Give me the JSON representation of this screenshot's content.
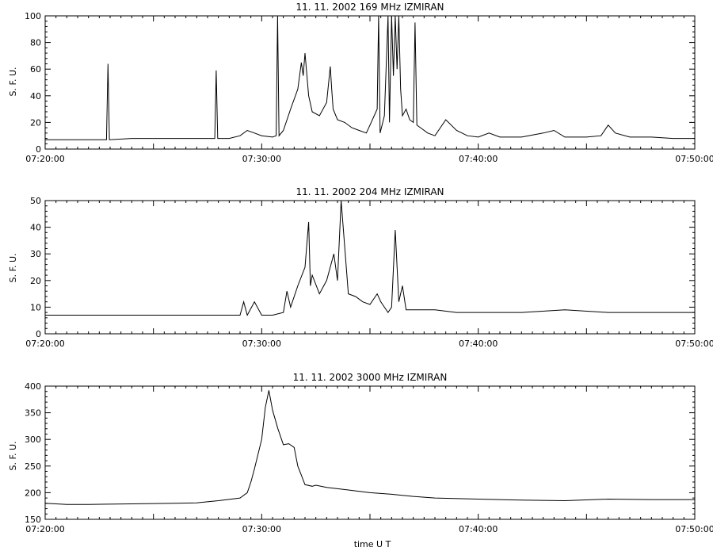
{
  "chart_data": [
    {
      "type": "line",
      "title": "11. 11. 2002 169 MHz IZMIRAN",
      "ylabel": "S. F. U.",
      "xlabel": "",
      "xlim": [
        "07:20:00",
        "07:50:00"
      ],
      "ylim": [
        0,
        100
      ],
      "yticks": [
        "0",
        "20",
        "40",
        "60",
        "80",
        "100"
      ],
      "xticks": [
        "07:20:00",
        "07:30:00",
        "07:40:00",
        "07:50:00"
      ],
      "series": [
        {
          "x": [
            "07:20:00",
            "07:21:00",
            "07:22:00",
            "07:22:50",
            "07:22:54",
            "07:22:58",
            "07:24:00",
            "07:25:00",
            "07:26:00",
            "07:27:00",
            "07:27:50",
            "07:27:54",
            "07:27:58",
            "07:28:30",
            "07:29:00",
            "07:29:20",
            "07:29:40",
            "07:30:00",
            "07:30:30",
            "07:30:40",
            "07:30:44",
            "07:30:48",
            "07:31:00",
            "07:31:20",
            "07:31:40",
            "07:31:50",
            "07:31:55",
            "07:32:00",
            "07:32:10",
            "07:32:20",
            "07:32:40",
            "07:33:00",
            "07:33:10",
            "07:33:14",
            "07:33:18",
            "07:33:30",
            "07:33:50",
            "07:34:10",
            "07:34:30",
            "07:34:50",
            "07:35:00",
            "07:35:20",
            "07:35:24",
            "07:35:28",
            "07:35:40",
            "07:35:50",
            "07:35:54",
            "07:36:00",
            "07:36:05",
            "07:36:10",
            "07:36:15",
            "07:36:20",
            "07:36:25",
            "07:36:30",
            "07:36:40",
            "07:36:50",
            "07:37:00",
            "07:37:05",
            "07:37:10",
            "07:37:20",
            "07:37:40",
            "07:38:00",
            "07:38:30",
            "07:39:00",
            "07:39:30",
            "07:40:00",
            "07:40:30",
            "07:41:00",
            "07:42:00",
            "07:43:00",
            "07:43:30",
            "07:44:00",
            "07:45:00",
            "07:45:40",
            "07:46:00",
            "07:46:20",
            "07:47:00",
            "07:48:00",
            "07:49:00",
            "07:50:00"
          ],
          "y": [
            7,
            7,
            7,
            7,
            64,
            7,
            8,
            8,
            8,
            8,
            8,
            59,
            8,
            8,
            10,
            14,
            12,
            10,
            9,
            10,
            100,
            10,
            14,
            30,
            45,
            65,
            55,
            72,
            40,
            28,
            25,
            35,
            62,
            45,
            30,
            22,
            20,
            16,
            14,
            12,
            18,
            30,
            100,
            12,
            25,
            100,
            20,
            100,
            55,
            100,
            60,
            100,
            45,
            25,
            30,
            22,
            20,
            95,
            18,
            16,
            12,
            10,
            22,
            14,
            10,
            9,
            12,
            9,
            9,
            12,
            14,
            9,
            9,
            10,
            18,
            12,
            9,
            9,
            8,
            8
          ]
        }
      ]
    },
    {
      "type": "line",
      "title": "11. 11. 2002 204 MHz IZMIRAN",
      "ylabel": "S. F. U.",
      "xlabel": "",
      "xlim": [
        "07:20:00",
        "07:50:00"
      ],
      "ylim": [
        0,
        50
      ],
      "yticks": [
        "0",
        "10",
        "20",
        "30",
        "40",
        "50"
      ],
      "xticks": [
        "07:20:00",
        "07:30:00",
        "07:40:00",
        "07:50:00"
      ],
      "series": [
        {
          "x": [
            "07:20:00",
            "07:22:00",
            "07:24:00",
            "07:26:00",
            "07:28:00",
            "07:29:00",
            "07:29:10",
            "07:29:20",
            "07:29:40",
            "07:30:00",
            "07:30:30",
            "07:31:00",
            "07:31:10",
            "07:31:20",
            "07:31:40",
            "07:32:00",
            "07:32:10",
            "07:32:15",
            "07:32:20",
            "07:32:40",
            "07:33:00",
            "07:33:20",
            "07:33:30",
            "07:33:40",
            "07:34:00",
            "07:34:20",
            "07:34:40",
            "07:35:00",
            "07:35:20",
            "07:35:30",
            "07:35:40",
            "07:35:50",
            "07:36:00",
            "07:36:10",
            "07:36:20",
            "07:36:30",
            "07:36:40",
            "07:37:00",
            "07:38:00",
            "07:39:00",
            "07:40:00",
            "07:42:00",
            "07:44:00",
            "07:46:00",
            "07:48:00",
            "07:50:00"
          ],
          "y": [
            7,
            7,
            7,
            7,
            7,
            7,
            12,
            7,
            12,
            7,
            7,
            8,
            16,
            10,
            18,
            25,
            42,
            18,
            22,
            15,
            20,
            30,
            20,
            50,
            15,
            14,
            12,
            11,
            15,
            12,
            10,
            8,
            10,
            39,
            12,
            18,
            9,
            9,
            9,
            8,
            8,
            8,
            9,
            8,
            8,
            8
          ]
        }
      ]
    },
    {
      "type": "line",
      "title": "11. 11. 2002 3000 MHz IZMIRAN",
      "ylabel": "S. F. U.",
      "xlabel": "time U T",
      "xlim": [
        "07:20:00",
        "07:50:00"
      ],
      "ylim": [
        150,
        400
      ],
      "yticks": [
        "150",
        "200",
        "250",
        "300",
        "350",
        "400"
      ],
      "xticks": [
        "07:20:00",
        "07:30:00",
        "07:40:00",
        "07:50:00"
      ],
      "series": [
        {
          "x": [
            "07:20:00",
            "07:21:00",
            "07:22:00",
            "07:24:00",
            "07:26:00",
            "07:27:00",
            "07:28:00",
            "07:29:00",
            "07:29:20",
            "07:29:30",
            "07:29:40",
            "07:30:00",
            "07:30:10",
            "07:30:20",
            "07:30:30",
            "07:30:45",
            "07:31:00",
            "07:31:15",
            "07:31:30",
            "07:31:40",
            "07:32:00",
            "07:32:20",
            "07:32:30",
            "07:33:00",
            "07:34:00",
            "07:35:00",
            "07:36:00",
            "07:37:00",
            "07:38:00",
            "07:40:00",
            "07:42:00",
            "07:44:00",
            "07:46:00",
            "07:48:00",
            "07:50:00"
          ],
          "y": [
            180,
            178,
            178,
            179,
            180,
            181,
            185,
            190,
            200,
            220,
            245,
            300,
            360,
            392,
            355,
            320,
            290,
            292,
            285,
            250,
            215,
            212,
            214,
            210,
            205,
            200,
            197,
            193,
            190,
            188,
            186,
            185,
            188,
            187,
            187
          ]
        }
      ]
    }
  ]
}
